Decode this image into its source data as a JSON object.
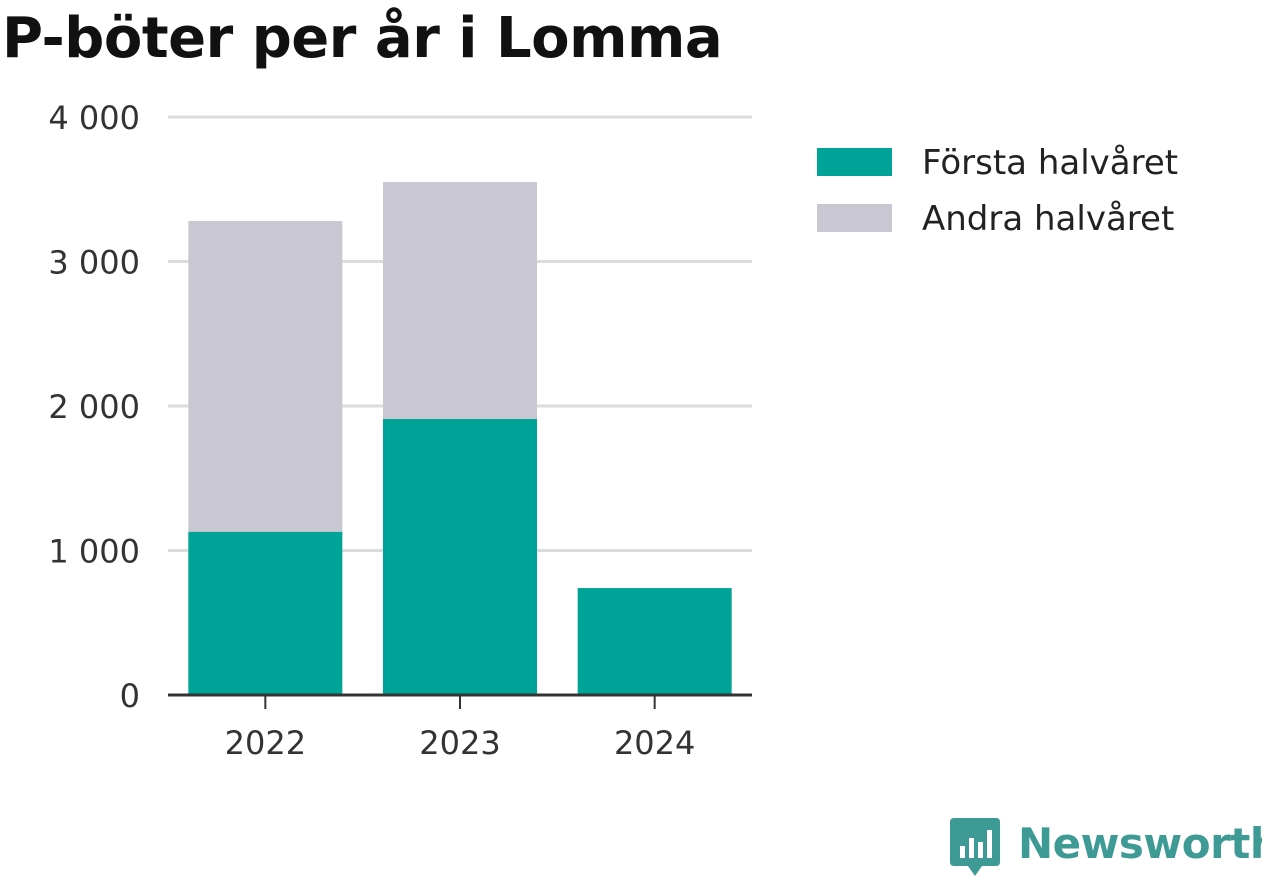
{
  "chart_data": {
    "type": "bar",
    "stacked": true,
    "title": "P-böter per år i Lomma",
    "categories": [
      "2022",
      "2023",
      "2024"
    ],
    "series": [
      {
        "name": "Första halvåret",
        "color": "#00a398",
        "values": [
          1130,
          1910,
          740
        ]
      },
      {
        "name": "Andra halvåret",
        "color": "#c8c7d2",
        "values": [
          2150,
          1640,
          0
        ]
      }
    ],
    "yticks": [
      "0",
      "1 000",
      "2 000",
      "3 000",
      "4 000"
    ],
    "ylim": [
      0,
      4000
    ],
    "grid": true,
    "legend_position": "right"
  },
  "brand": {
    "name": "Newsworthy",
    "icon": "newsworthy-logo-icon",
    "color": "#3d9a94"
  }
}
